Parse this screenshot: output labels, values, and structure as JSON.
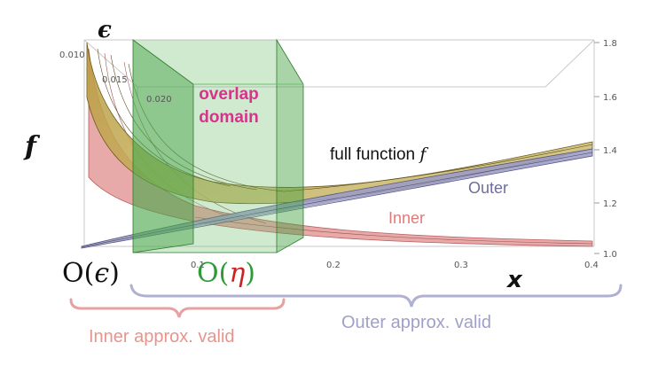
{
  "labels": {
    "epsilon_axis": "ϵ",
    "f_axis": "f",
    "x_axis": "x",
    "overlap_line1": "overlap",
    "overlap_line2": "domain",
    "full_function": "full function ",
    "full_function_f": "f",
    "outer": "Outer",
    "inner": "Inner",
    "O_eps_O": "O(",
    "O_eps_sym": "ϵ",
    "O_eps_close": ")",
    "O_eta_O": "O(",
    "O_eta_sym": "η",
    "O_eta_close": ")",
    "inner_valid": "Inner approx. valid",
    "outer_valid": "Outer approx. valid"
  },
  "ticks": {
    "eps": [
      "0.010",
      "0.015",
      "0.020"
    ],
    "x": [
      "0.1",
      "0.2",
      "0.3",
      "0.4"
    ],
    "f": [
      "1.8",
      "1.6",
      "1.4",
      "1.2",
      "1.0"
    ]
  },
  "colors": {
    "overlap_text": "#d6338a",
    "inner": "#e08c8c",
    "outer": "#9a9ac4",
    "overlap_green": "#6cbf6c",
    "eta": "#cc2222",
    "O_eta": "#2e9a3a"
  }
}
